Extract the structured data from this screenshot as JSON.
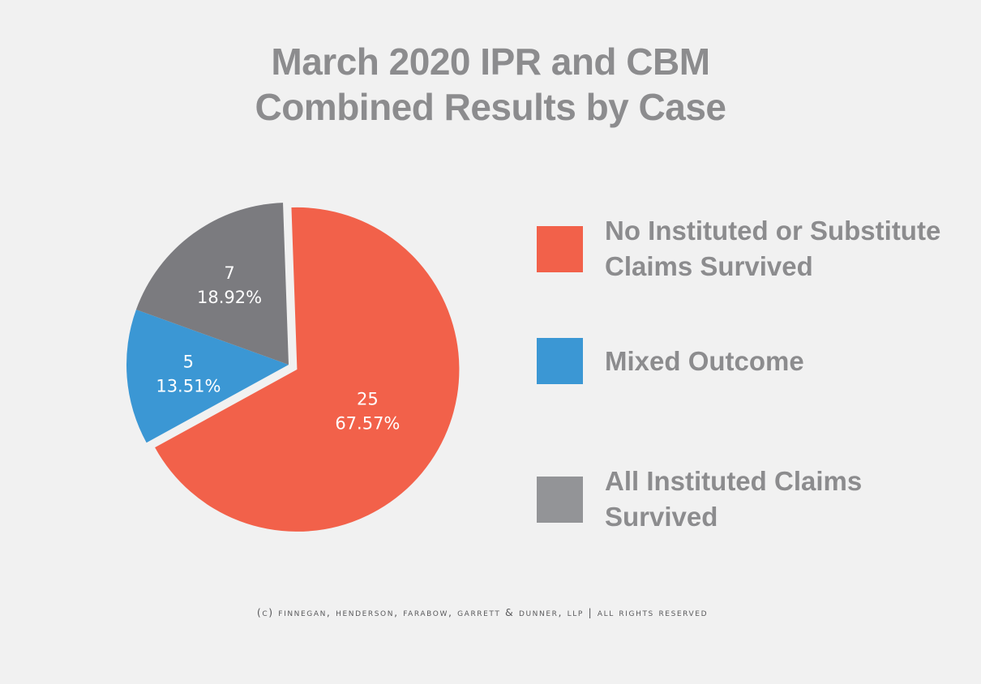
{
  "chart_data": {
    "type": "pie",
    "title": "March 2020 IPR and CBM Combined Results by Case",
    "title_lines": [
      "March 2020 IPR and CBM",
      "Combined Results by Case"
    ],
    "slices": [
      {
        "name": "No Instituted or Substitute Claims Survived",
        "legend_lines": [
          "No Instituted or Substitute",
          "Claims Survived"
        ],
        "value": 25,
        "percent_label": "67.57%",
        "color": "#f2614a",
        "exploded": true
      },
      {
        "name": "Mixed Outcome",
        "legend_lines": [
          "Mixed Outcome"
        ],
        "value": 5,
        "percent_label": "13.51%",
        "color": "#3b97d4",
        "exploded": false
      },
      {
        "name": "All Instituted Claims Survived",
        "legend_lines": [
          "All Instituted Claims",
          "Survived"
        ],
        "value": 7,
        "percent_label": "18.92%",
        "color": "#7b7b7f",
        "exploded": false
      }
    ],
    "legend_colors": [
      "#f2614a",
      "#3b97d4",
      "#939497"
    ],
    "legend_position": "right"
  },
  "footer": "(c) Finnegan, Henderson, Farabow, Garrett & Dunner, LLP | All rights reserved"
}
